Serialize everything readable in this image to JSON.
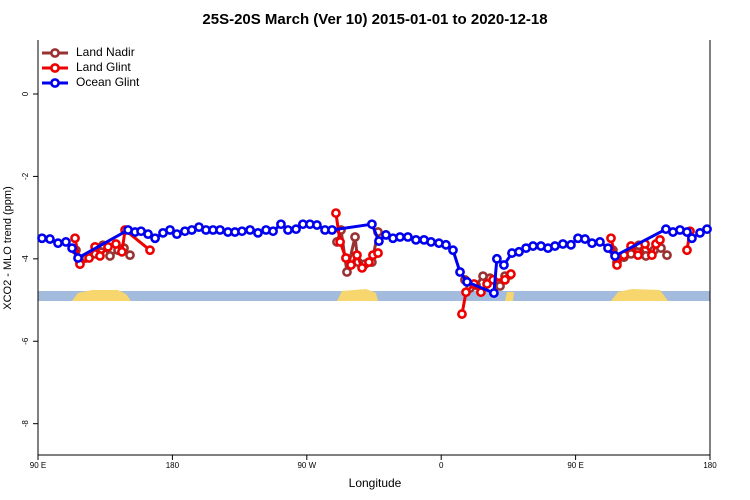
{
  "chart_data": {
    "type": "line",
    "title": "25S-20S March (Ver 10)   2015-01-01 to 2020-12-18",
    "xlabel": "Longitude",
    "ylabel": "XCO2 - MLO trend (ppm)",
    "xlim": [
      90,
      540
    ],
    "ylim": [
      -8.76,
      1.31
    ],
    "xticks": [
      {
        "value": 90,
        "label": "90 E"
      },
      180,
      {
        "value": 270,
        "label": "90 W"
      },
      {
        "value": 360,
        "label": "0"
      },
      {
        "value": 450,
        "label": "90 E"
      },
      {
        "value": 540,
        "label": "180"
      }
    ],
    "yticks": [
      0,
      -2,
      -4,
      -6,
      -8
    ],
    "legend": "top-left",
    "series": [
      {
        "name": "Land Nadir",
        "color": "#993333",
        "x": [
          115.4,
          118.1,
          122.1,
          128.2,
          133.5,
          138.2,
          143.6,
          147.6,
          151.6,
          null,
          290.2,
          292.9,
          296.9,
          302.3,
          304.3,
          308.9,
          313.6,
          317.7,
          null,
          375.9,
          379.3,
          383.3,
          388,
          392.7,
          399.4,
          402.7,
          406.1,
          null,
          475,
          477.7,
          482.4,
          487.1,
          492.4,
          497.1,
          502.5,
          507.2,
          511.2
        ],
        "values": [
          -3.79,
          -4.08,
          -3.98,
          -3.88,
          -3.67,
          -3.93,
          -3.79,
          -3.74,
          -3.91,
          null,
          -3.59,
          -3.3,
          -4.32,
          -3.47,
          -4.08,
          -4.13,
          -4.08,
          -3.35,
          null,
          -4.51,
          -4.71,
          -4.64,
          -4.42,
          -4.47,
          -4.66,
          -4.42,
          -4.39,
          null,
          -3.79,
          -4.08,
          -3.96,
          -3.88,
          -3.67,
          -3.93,
          -3.79,
          -3.74,
          -3.91
        ]
      },
      {
        "name": "Land Glint",
        "color": "#ee0000",
        "x": [
          114.8,
          118.1,
          124.2,
          128.2,
          131.5,
          136.9,
          142.2,
          146.2,
          148.3,
          165,
          null,
          289.5,
          292.3,
          296.2,
          299.6,
          303.6,
          307,
          311.6,
          314.3,
          317.7,
          null,
          373.9,
          376.6,
          382,
          386.6,
          390.7,
          394.7,
          402.7,
          406.7,
          null,
          473.7,
          477.7,
          482.4,
          487.1,
          491.8,
          496.5,
          501.1,
          503.8,
          506.5,
          null,
          524.6,
          526.6
        ],
        "values": [
          -3.5,
          -4.13,
          -3.98,
          -3.71,
          -3.93,
          -3.71,
          -3.64,
          -3.83,
          -3.3,
          -3.79,
          null,
          -2.89,
          -3.59,
          -3.98,
          -4.15,
          -3.91,
          -4.22,
          -4.08,
          -3.91,
          -3.86,
          null,
          -5.34,
          -4.81,
          -4.61,
          -4.81,
          -4.61,
          -4.51,
          -4.51,
          -4.37,
          null,
          -3.5,
          -4.15,
          -3.91,
          -3.69,
          -3.91,
          -3.64,
          -3.91,
          -3.64,
          -3.54,
          null,
          -3.79,
          -3.33
        ]
      },
      {
        "name": "Ocean Glint",
        "color": "#0000ee",
        "x": [
          92.7,
          98,
          103.4,
          108.7,
          112.8,
          116.8,
          150.3,
          155,
          159,
          163.7,
          168.4,
          173.7,
          178.4,
          183,
          188.4,
          193,
          197.8,
          202.5,
          207.2,
          211.9,
          217.2,
          221.9,
          226.6,
          232,
          237.3,
          242.7,
          247.4,
          252.7,
          257.4,
          262.8,
          267.4,
          272.1,
          276.8,
          282.2,
          286.9,
          313.6,
          318.3,
          323,
          327.7,
          332.4,
          337.7,
          343.1,
          348.5,
          353.2,
          358.5,
          363.2,
          367.9,
          372.6,
          377.3,
          395.3,
          397.3,
          402,
          407.4,
          412.1,
          416.8,
          421.5,
          426.8,
          431.5,
          436.2,
          441.5,
          446.9,
          451.6,
          456.3,
          461,
          466.3,
          471.7,
          476.4,
          510.5,
          515.2,
          519.9,
          524.6,
          527.9,
          533.3,
          538
        ],
        "values": [
          -3.5,
          -3.52,
          -3.62,
          -3.59,
          -3.74,
          -3.98,
          -3.3,
          -3.35,
          -3.33,
          -3.4,
          -3.5,
          -3.37,
          -3.3,
          -3.4,
          -3.33,
          -3.3,
          -3.23,
          -3.3,
          -3.3,
          -3.3,
          -3.35,
          -3.35,
          -3.33,
          -3.3,
          -3.37,
          -3.3,
          -3.33,
          -3.16,
          -3.3,
          -3.28,
          -3.16,
          -3.16,
          -3.18,
          -3.3,
          -3.3,
          -3.16,
          -3.57,
          -3.42,
          -3.5,
          -3.47,
          -3.47,
          -3.54,
          -3.54,
          -3.59,
          -3.62,
          -3.66,
          -3.79,
          -4.32,
          -4.56,
          -4.83,
          -4.0,
          -4.15,
          -3.86,
          -3.83,
          -3.74,
          -3.69,
          -3.69,
          -3.74,
          -3.69,
          -3.64,
          -3.66,
          -3.5,
          -3.52,
          -3.62,
          -3.59,
          -3.74,
          -3.93,
          -3.28,
          -3.35,
          -3.3,
          -3.35,
          -3.5,
          -3.37,
          -3.28
        ]
      }
    ]
  }
}
